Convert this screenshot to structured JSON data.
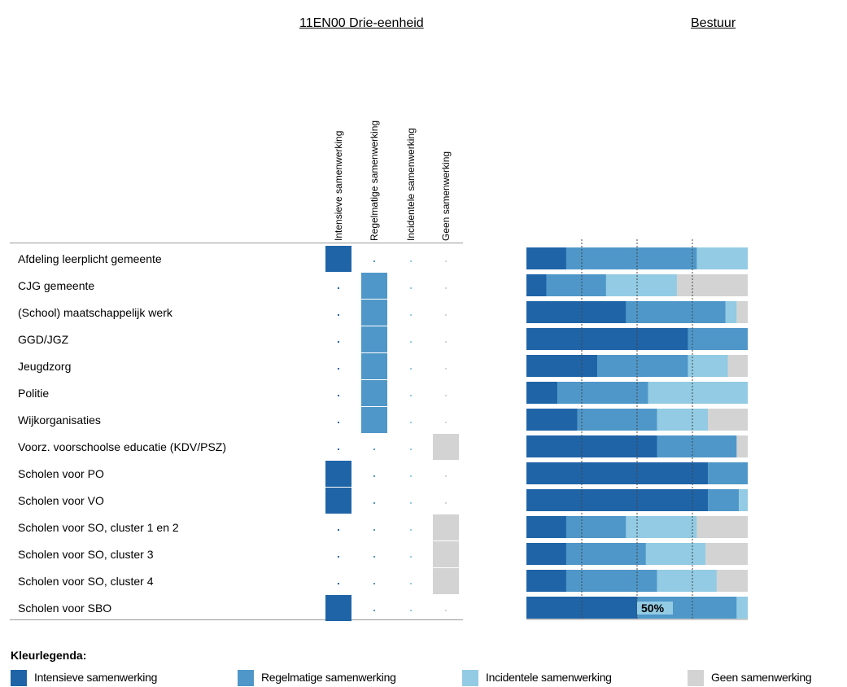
{
  "school_title": "11EN00 Drie-eenheid",
  "board_title": "Bestuur",
  "legend_title": "Kleurlegenda:",
  "colors": {
    "intensive": "#1f64a7",
    "regular": "#4f97c9",
    "incidental": "#92cbe3",
    "none": "#d3d3d3"
  },
  "columns": [
    {
      "label": "Intensieve samenwerking",
      "key": "intensive"
    },
    {
      "label": "Regelmatige samenwerking",
      "key": "regular"
    },
    {
      "label": "Incidentele samenwerking",
      "key": "incidental"
    },
    {
      "label": "Geen samenwerking",
      "key": "none"
    }
  ],
  "legend": [
    {
      "label": "Intensieve samenwerking",
      "key": "intensive"
    },
    {
      "label": "Regelmatige samenwerking",
      "key": "regular"
    },
    {
      "label": "Incidentele samenwerking",
      "key": "incidental"
    },
    {
      "label": "Geen samenwerking",
      "key": "none"
    }
  ],
  "rows": [
    "Afdeling leerplicht gemeente",
    "CJG gemeente",
    "(School) maatschappelijk werk",
    "GGD/JGZ",
    "Jeugdzorg",
    "Politie",
    "Wijkorganisaties",
    "Voorz. voorschoolse educatie (KDV/PSZ)",
    "Scholen voor PO",
    "Scholen voor VO",
    "Scholen voor SO, cluster 1 en 2",
    "Scholen voor SO, cluster 3",
    "Scholen voor SO, cluster 4",
    "Scholen voor SBO"
  ],
  "chart_data": [
    {
      "type": "table",
      "title": "11EN00 Drie-eenheid",
      "columns": [
        "Intensieve samenwerking",
        "Regelmatige samenwerking",
        "Incidentele samenwerking",
        "Geen samenwerking"
      ],
      "categories": [
        "Afdeling leerplicht gemeente",
        "CJG gemeente",
        "(School) maatschappelijk werk",
        "GGD/JGZ",
        "Jeugdzorg",
        "Politie",
        "Wijkorganisaties",
        "Voorz. voorschoolse educatie (KDV/PSZ)",
        "Scholen voor PO",
        "Scholen voor VO",
        "Scholen voor SO, cluster 1 en 2",
        "Scholen voor SO, cluster 3",
        "Scholen voor SO, cluster 4",
        "Scholen voor SBO"
      ],
      "selected": [
        "Intensieve samenwerking",
        "Regelmatige samenwerking",
        "Regelmatige samenwerking",
        "Regelmatige samenwerking",
        "Regelmatige samenwerking",
        "Regelmatige samenwerking",
        "Regelmatige samenwerking",
        "Geen samenwerking",
        "Intensieve samenwerking",
        "Intensieve samenwerking",
        "Geen samenwerking",
        "Geen samenwerking",
        "Geen samenwerking",
        "Intensieve samenwerking"
      ]
    },
    {
      "type": "bar",
      "stacked": true,
      "orientation": "horizontal",
      "title": "Bestuur",
      "categories": [
        "Afdeling leerplicht gemeente",
        "CJG gemeente",
        "(School) maatschappelijk werk",
        "GGD/JGZ",
        "Jeugdzorg",
        "Politie",
        "Wijkorganisaties",
        "Voorz. voorschoolse educatie (KDV/PSZ)",
        "Scholen voor PO",
        "Scholen voor VO",
        "Scholen voor SO, cluster 1 en 2",
        "Scholen voor SO, cluster 3",
        "Scholen voor SO, cluster 4",
        "Scholen voor SBO"
      ],
      "series": [
        {
          "name": "Intensieve samenwerking",
          "values": [
            18,
            9,
            45,
            73,
            32,
            14,
            23,
            59,
            82,
            82,
            18,
            18,
            18,
            50
          ]
        },
        {
          "name": "Regelmatige samenwerking",
          "values": [
            59,
            27,
            45,
            27,
            41,
            41,
            36,
            36,
            18,
            14,
            27,
            36,
            41,
            45
          ]
        },
        {
          "name": "Incidentele samenwerking",
          "values": [
            23,
            32,
            5,
            0,
            18,
            45,
            23,
            0,
            0,
            4,
            32,
            27,
            27,
            5
          ]
        },
        {
          "name": "Geen samenwerking",
          "values": [
            0,
            32,
            5,
            0,
            9,
            0,
            18,
            5,
            0,
            0,
            23,
            19,
            14,
            0
          ]
        }
      ],
      "xlim": [
        0,
        100
      ],
      "gridlines": [
        25,
        50,
        75
      ],
      "annotation": "50%"
    }
  ]
}
